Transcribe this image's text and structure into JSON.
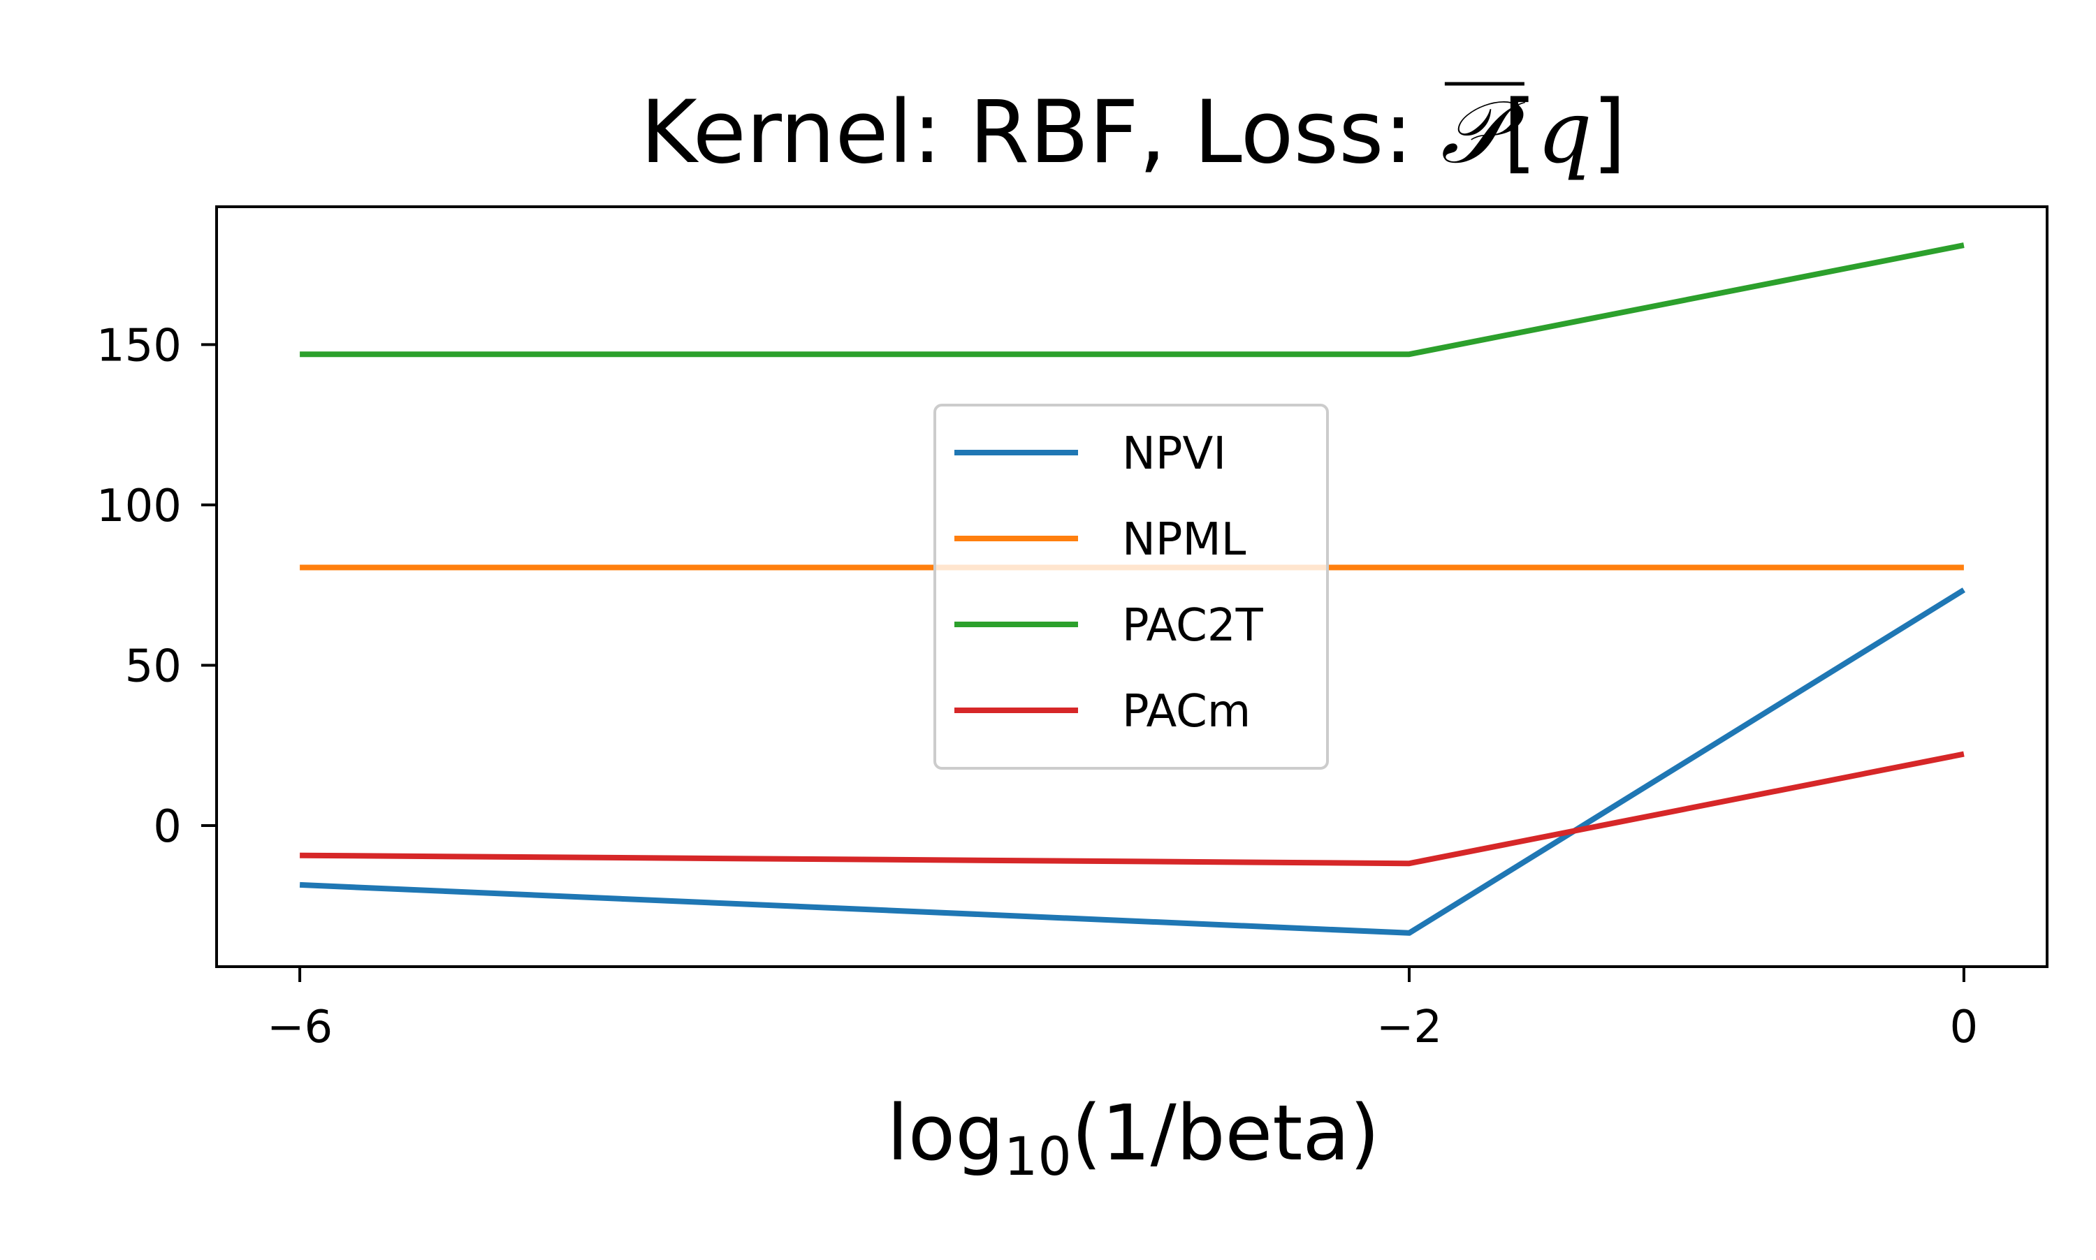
{
  "chart_data": {
    "type": "line",
    "title": "Kernel: RBF, Loss: ̅𝒫[q]",
    "title_parts": {
      "prefix": "Kernel: RBF, Loss: ",
      "symbol": "𝒫",
      "bracket_open": "[",
      "var": "q",
      "bracket_close": "]"
    },
    "xlabel": "log10(1/beta)",
    "xlabel_parts": {
      "pre": "log",
      "sub": "10",
      "post": "(1/beta)"
    },
    "ylabel": "",
    "x": [
      -6,
      -2,
      0
    ],
    "xticks": [
      {
        "value": -6,
        "label": "−6"
      },
      {
        "value": -2,
        "label": "−2"
      },
      {
        "value": 0,
        "label": "0"
      }
    ],
    "yticks": [
      {
        "value": 0,
        "label": "0"
      },
      {
        "value": 50,
        "label": "50"
      },
      {
        "value": 100,
        "label": "100"
      },
      {
        "value": 150,
        "label": "150"
      }
    ],
    "xlim": [
      -6.3,
      0.3
    ],
    "ylim": [
      -44,
      193
    ],
    "grid": false,
    "legend_position": "center",
    "series": [
      {
        "name": "NPVI",
        "color": "#1f77b4",
        "values": [
          -18.5,
          -33.5,
          73.5
        ]
      },
      {
        "name": "NPML",
        "color": "#ff7f0e",
        "values": [
          80.5,
          80.5,
          80.5
        ]
      },
      {
        "name": "PAC2T",
        "color": "#2ca02c",
        "values": [
          147,
          147,
          181
        ]
      },
      {
        "name": "PACm",
        "color": "#d62728",
        "values": [
          -9.3,
          -11.8,
          22.3
        ]
      }
    ]
  }
}
